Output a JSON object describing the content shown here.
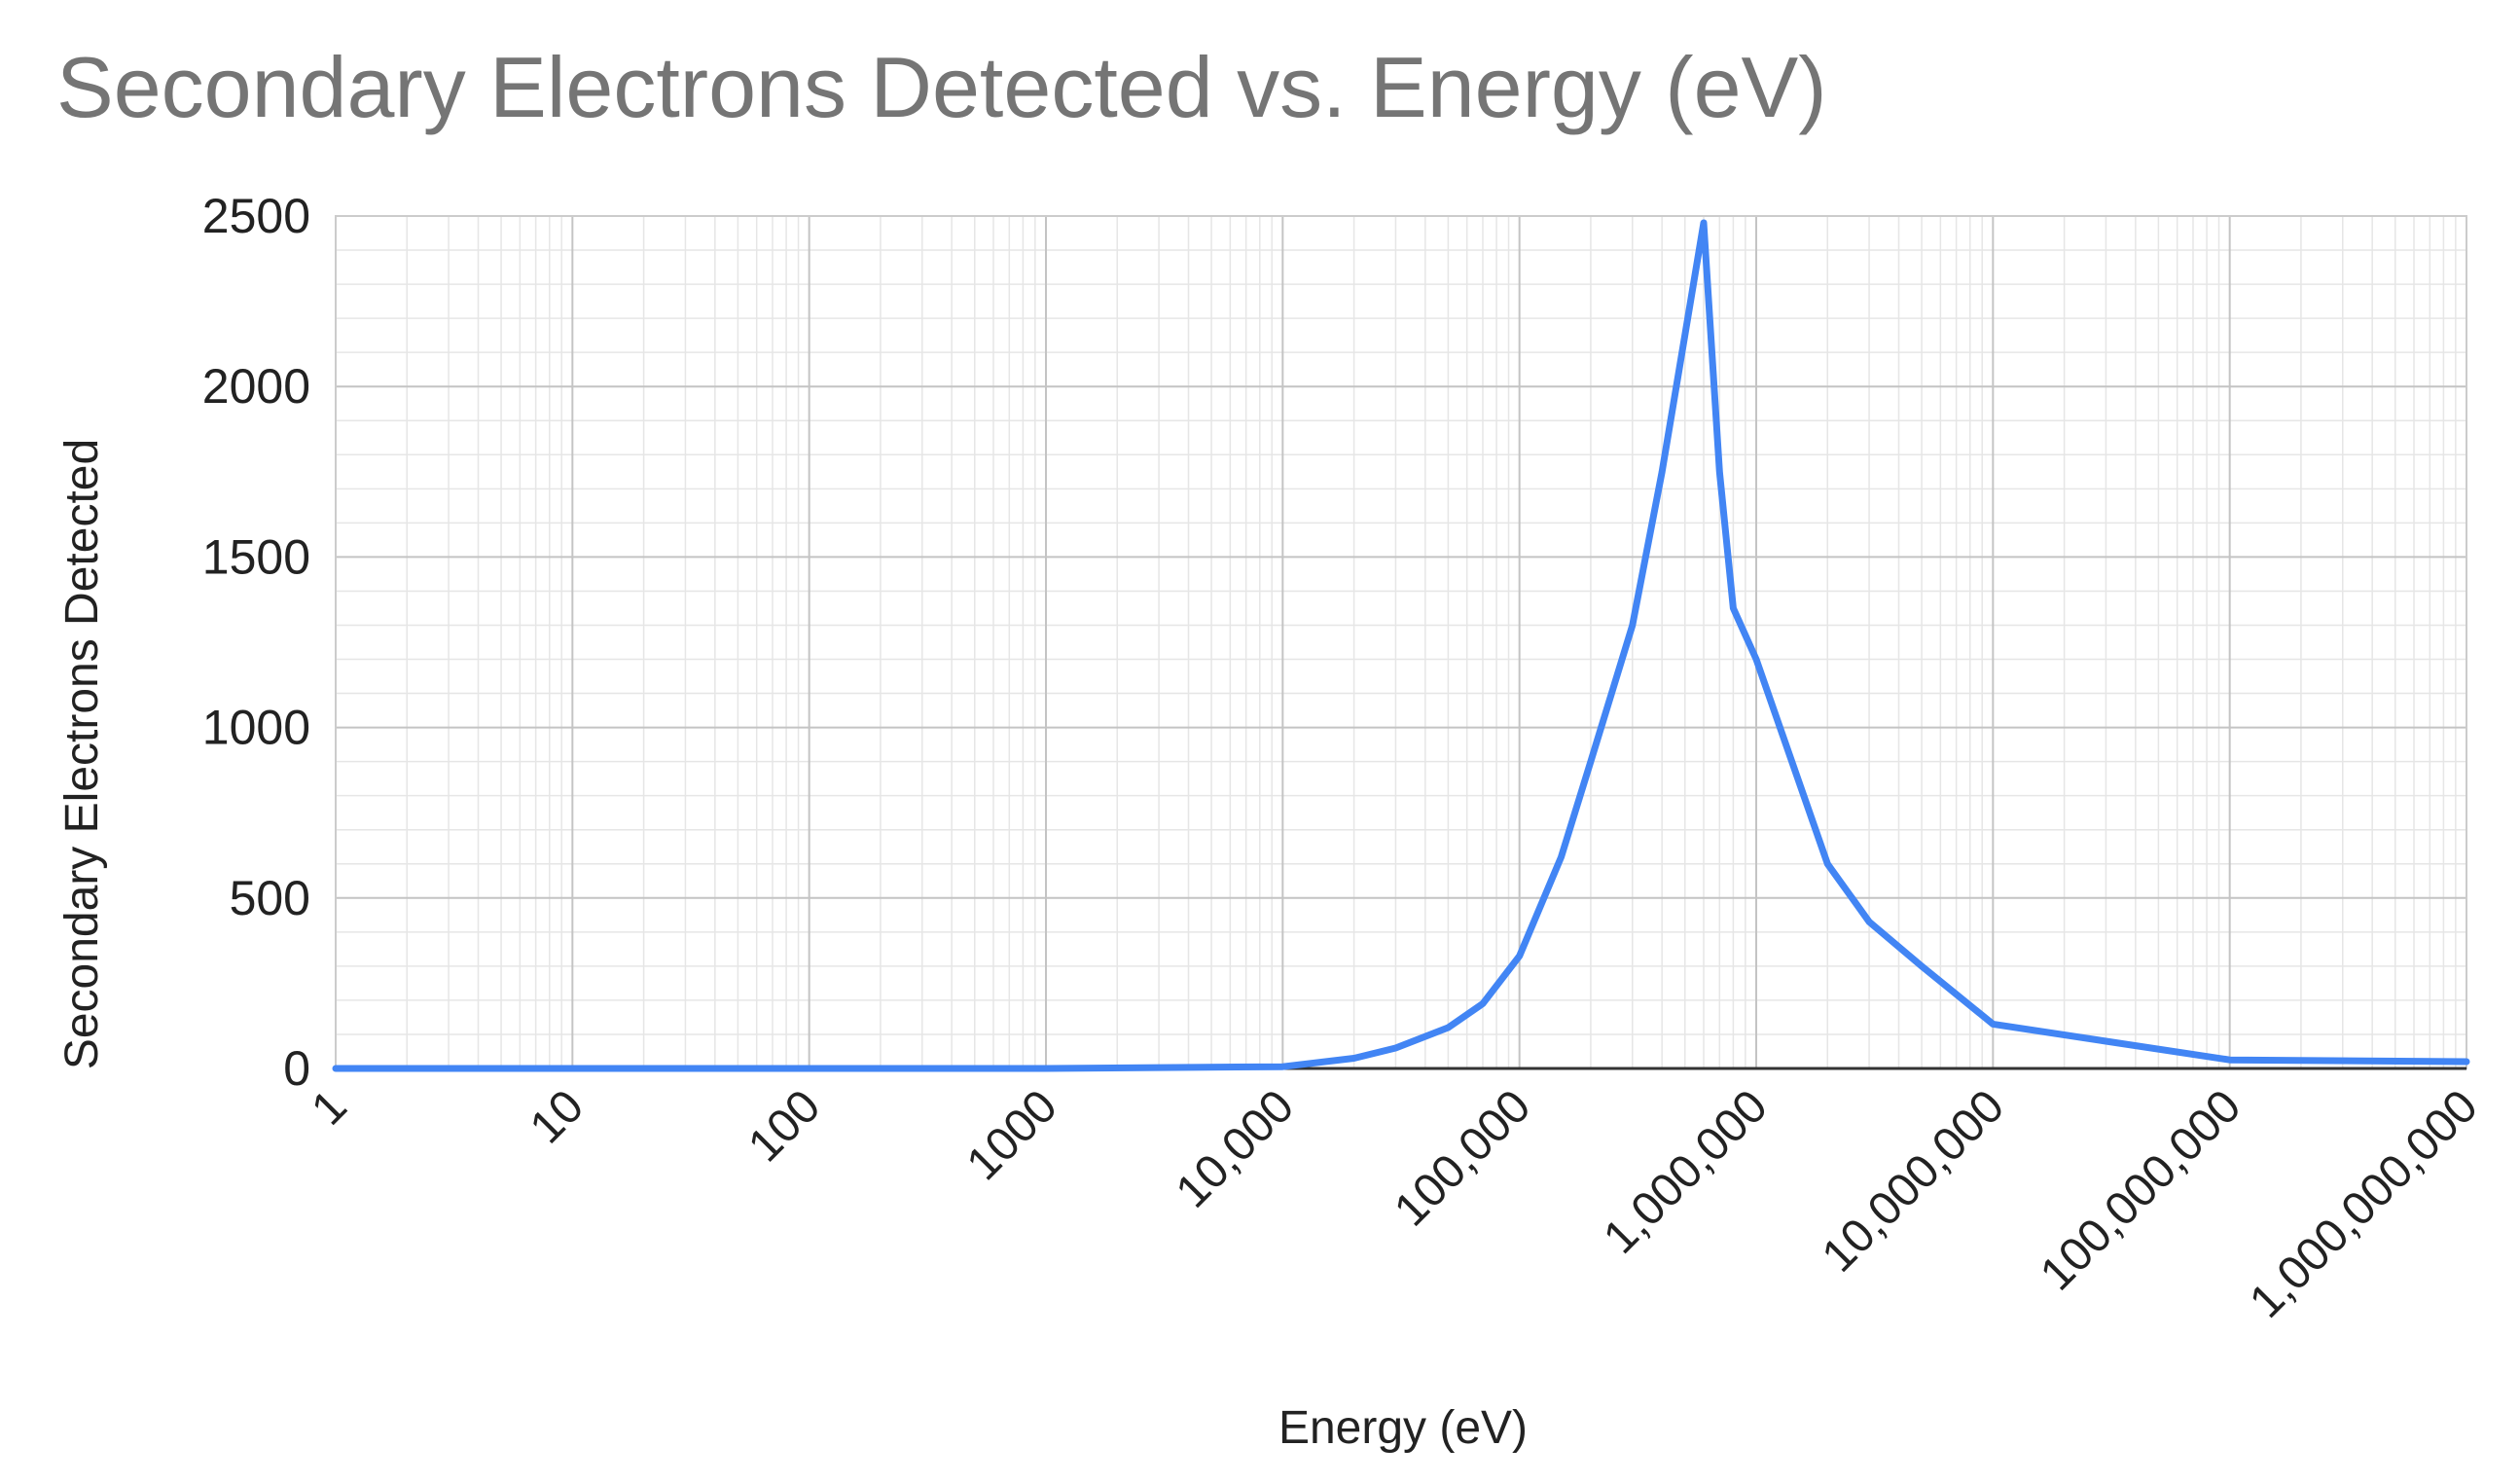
{
  "chart_data": {
    "type": "line",
    "title": "Secondary Electrons Detected vs. Energy (eV)",
    "xlabel": "Energy (eV)",
    "ylabel": "Secondary Electrons Detected",
    "x_scale": "log",
    "xlim": [
      1,
      1000000000
    ],
    "ylim": [
      0,
      2500
    ],
    "grid": true,
    "legend": "none",
    "x_ticks": [
      {
        "value": 1,
        "label": "1"
      },
      {
        "value": 10,
        "label": "10"
      },
      {
        "value": 100,
        "label": "100"
      },
      {
        "value": 1000,
        "label": "1000"
      },
      {
        "value": 10000,
        "label": "10,000"
      },
      {
        "value": 100000,
        "label": "100,000"
      },
      {
        "value": 1000000,
        "label": "1,000,000"
      },
      {
        "value": 10000000,
        "label": "10,000,000"
      },
      {
        "value": 100000000,
        "label": "100,000,000"
      },
      {
        "value": 1000000000,
        "label": "1,000,000,000"
      }
    ],
    "y_ticks": [
      {
        "value": 0,
        "label": "0"
      },
      {
        "value": 500,
        "label": "500"
      },
      {
        "value": 1000,
        "label": "1000"
      },
      {
        "value": 1500,
        "label": "1500"
      },
      {
        "value": 2000,
        "label": "2000"
      },
      {
        "value": 2500,
        "label": "2500"
      }
    ],
    "series": [
      {
        "name": "Secondary Electrons Detected",
        "color": "#4285f4",
        "x": [
          1,
          10,
          100,
          1000,
          10000,
          20000,
          30000,
          50000,
          70000,
          100000,
          150000,
          200000,
          300000,
          400000,
          500000,
          600000,
          700000,
          800000,
          1000000,
          2000000,
          3000000,
          5000000,
          10000000,
          30000000,
          100000000,
          1000000000
        ],
        "y": [
          0,
          0,
          0,
          0,
          5,
          30,
          60,
          120,
          190,
          330,
          620,
          900,
          1300,
          1750,
          2150,
          2480,
          1750,
          1350,
          1200,
          600,
          430,
          300,
          130,
          80,
          25,
          20
        ]
      }
    ]
  }
}
